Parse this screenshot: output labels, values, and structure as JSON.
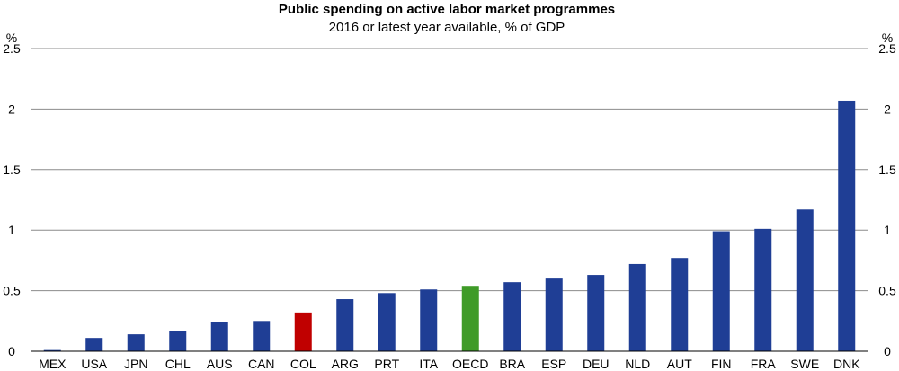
{
  "chart_data": {
    "type": "bar",
    "title": "Public spending on active labor market programmes",
    "subtitle": "2016 or latest year available, % of GDP",
    "ylabel_left": "%",
    "ylabel_right": "%",
    "ylim": [
      0,
      2.5
    ],
    "yticks": [
      "0",
      "0.5",
      "1",
      "1.5",
      "2",
      "2.5"
    ],
    "ytick_values": [
      0,
      0.5,
      1,
      1.5,
      2,
      2.5
    ],
    "grid": true,
    "categories": [
      "MEX",
      "USA",
      "JPN",
      "CHL",
      "AUS",
      "CAN",
      "COL",
      "ARG",
      "PRT",
      "ITA",
      "OECD",
      "BRA",
      "ESP",
      "DEU",
      "NLD",
      "AUT",
      "FIN",
      "FRA",
      "SWE",
      "DNK"
    ],
    "values": [
      0.01,
      0.11,
      0.14,
      0.17,
      0.24,
      0.25,
      0.32,
      0.43,
      0.48,
      0.51,
      0.54,
      0.57,
      0.6,
      0.63,
      0.72,
      0.77,
      0.99,
      1.01,
      1.17,
      2.07
    ],
    "colors": {
      "default": "#1f3e95",
      "COL": "#c00000",
      "OECD": "#3f9b28"
    }
  }
}
